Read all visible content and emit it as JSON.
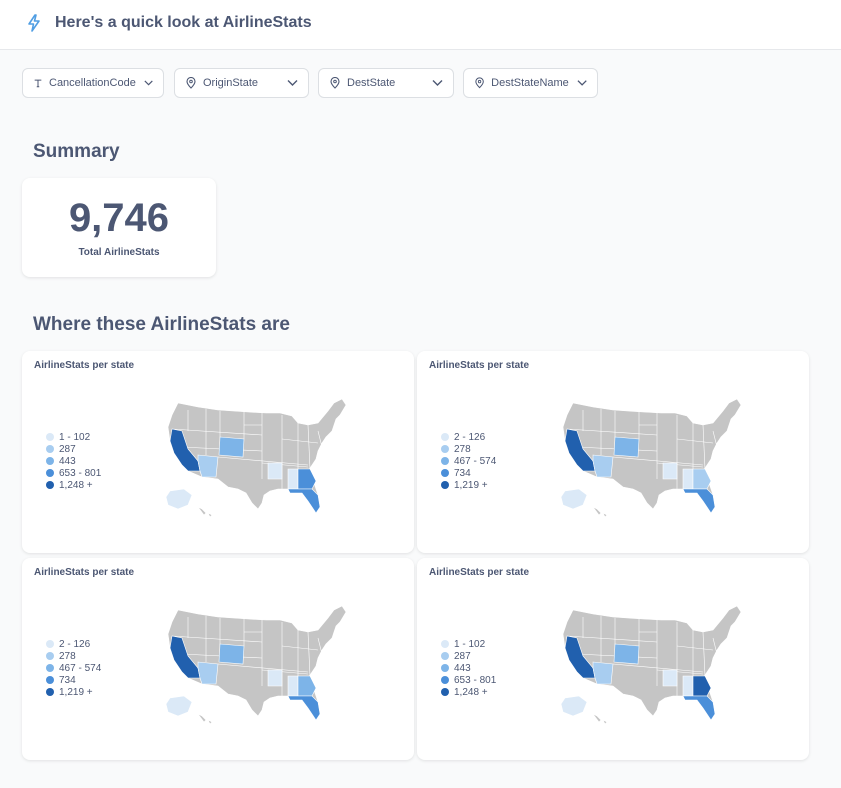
{
  "header": {
    "title": "Here's a quick look at AirlineStats",
    "icon": "bolt-icon"
  },
  "filters": [
    {
      "label": "CancellationCode",
      "icon": "text-icon"
    },
    {
      "label": "OriginState",
      "icon": "location-pin-icon"
    },
    {
      "label": "DestState",
      "icon": "location-pin-icon"
    },
    {
      "label": "DestStateName",
      "icon": "location-pin-icon"
    }
  ],
  "summary": {
    "section_title": "Summary",
    "value": "9,746",
    "label": "Total AirlineStats"
  },
  "where": {
    "section_title": "Where these AirlineStats are"
  },
  "colors": {
    "accent": "#509ee3",
    "map_base": "#c5c5c5",
    "scale": [
      "#dbe9f7",
      "#a8cdf0",
      "#7db4e8",
      "#4b8fd9",
      "#2160ae"
    ]
  },
  "maps": [
    {
      "title": "AirlineStats per state",
      "legend": [
        "1 - 102",
        "287",
        "443",
        "653 - 801",
        "1,248 +"
      ],
      "states": {
        "CA": 4,
        "CO": 2,
        "AZ": 1,
        "AR": 0,
        "AL": 0,
        "GA": 3,
        "FL": 3,
        "AK": 0
      }
    },
    {
      "title": "AirlineStats per state",
      "legend": [
        "2 - 126",
        "278",
        "467 - 574",
        "734",
        "1,219 +"
      ],
      "states": {
        "CA": 4,
        "CO": 2,
        "AZ": 1,
        "AR": 0,
        "AL": 0,
        "GA": 1,
        "FL": 3,
        "AK": 0
      }
    },
    {
      "title": "AirlineStats per state",
      "legend": [
        "2 - 126",
        "278",
        "467 - 574",
        "734",
        "1,219 +"
      ],
      "states": {
        "CA": 4,
        "CO": 2,
        "AZ": 1,
        "AR": 0,
        "AL": 0,
        "GA": 2,
        "FL": 3,
        "AK": 0
      }
    },
    {
      "title": "AirlineStats per state",
      "legend": [
        "1 - 102",
        "287",
        "443",
        "653 - 801",
        "1,248 +"
      ],
      "states": {
        "CA": 4,
        "CO": 2,
        "AZ": 1,
        "AR": 0,
        "AL": 0,
        "GA": 4,
        "FL": 3,
        "AK": 0
      }
    }
  ]
}
